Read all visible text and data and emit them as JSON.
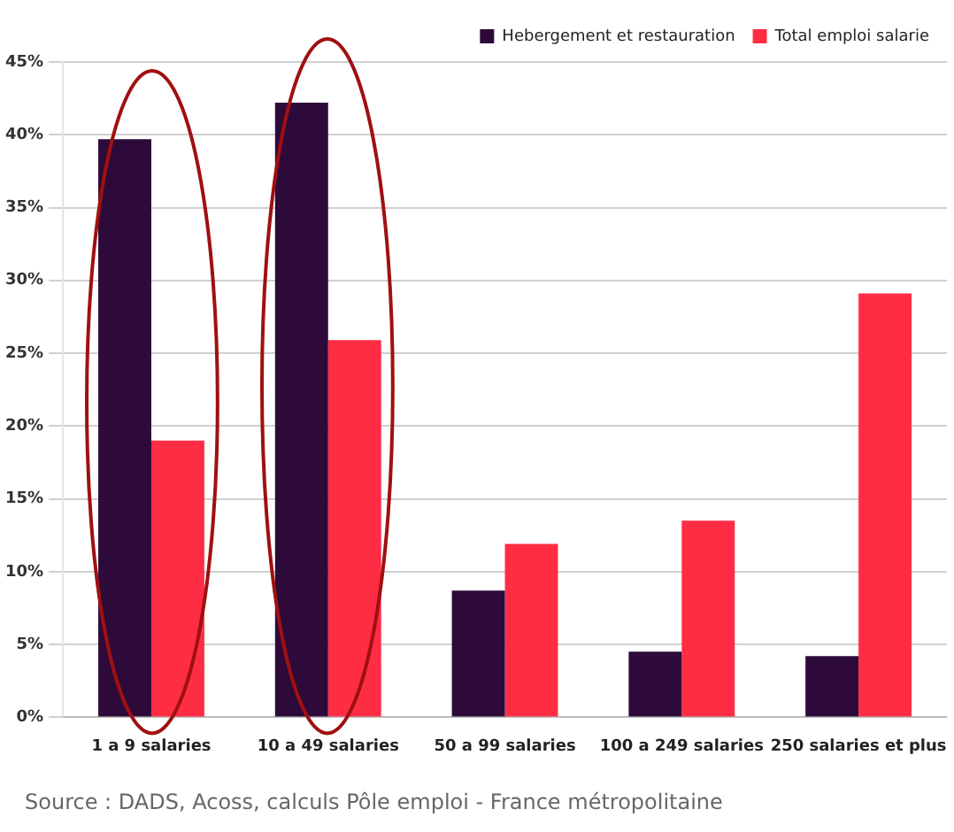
{
  "chart_data": {
    "type": "bar",
    "categories": [
      "1 a 9 salaries",
      "10 a 49 salaries",
      "50 a 99 salaries",
      "100 a 249 salaries",
      "250 salaries et plus"
    ],
    "series": [
      {
        "name": "Hebergement et restauration",
        "color": "#2d0a3a",
        "values": [
          39.7,
          42.2,
          8.7,
          4.5,
          4.2
        ]
      },
      {
        "name": "Total emploi salarie",
        "color": "#ff2d44",
        "values": [
          19.0,
          25.9,
          11.9,
          13.5,
          29.1
        ]
      }
    ],
    "ylim": [
      0,
      45
    ],
    "yticks": [
      {
        "value": 0,
        "label": "0%"
      },
      {
        "value": 5,
        "label": "5%"
      },
      {
        "value": 10,
        "label": "10%"
      },
      {
        "value": 15,
        "label": "15%"
      },
      {
        "value": 20,
        "label": "20%"
      },
      {
        "value": 25,
        "label": "25%"
      },
      {
        "value": 30,
        "label": "30%"
      },
      {
        "value": 35,
        "label": "35%"
      },
      {
        "value": 40,
        "label": "40%"
      },
      {
        "value": 45,
        "label": "45%"
      }
    ],
    "grid": "y",
    "legend": "top right",
    "annotations": [
      "Source : DADS, Acoss, calculs Pôle emploi - France métropolitaine"
    ]
  }
}
